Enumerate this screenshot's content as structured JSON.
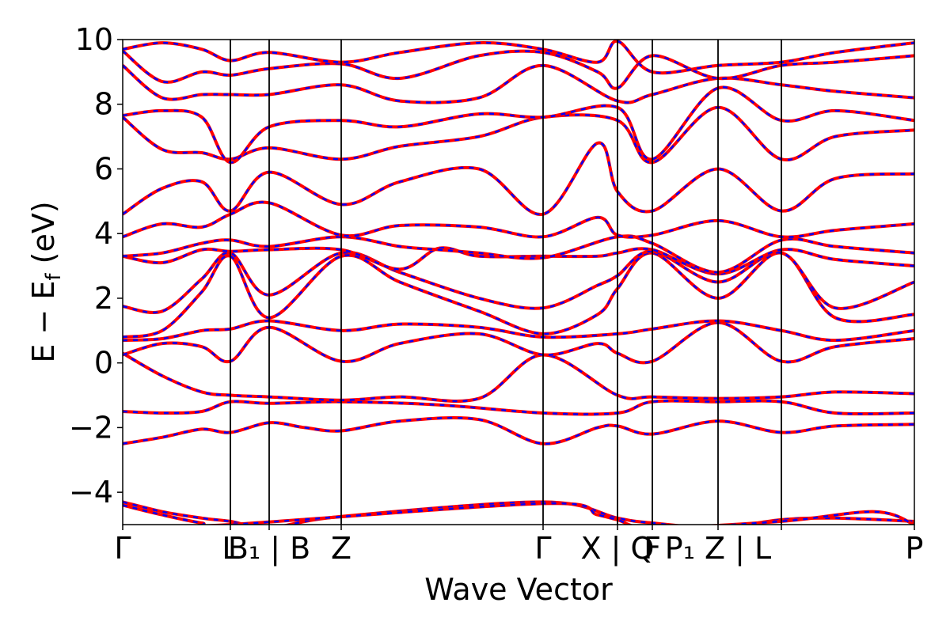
{
  "chart_data": {
    "type": "line",
    "title": "",
    "xlabel": "Wave Vector",
    "ylabel": "E − E_f (eV)",
    "ylabel_main": "E − E",
    "ylabel_sub": "f",
    "ylabel_unit": "(eV)",
    "ylim": [
      -5,
      10
    ],
    "yticks": [
      -4,
      -2,
      0,
      2,
      4,
      6,
      8,
      10
    ],
    "ytick_labels": [
      "−4",
      "−2",
      "0",
      "2",
      "4",
      "6",
      "8",
      "10"
    ],
    "xlim": [
      0,
      1
    ],
    "kpoints": [
      {
        "x": 0.0,
        "label": "Γ"
      },
      {
        "x": 0.136,
        "label": "L"
      },
      {
        "x": 0.185,
        "label": "B₁ | B"
      },
      {
        "x": 0.276,
        "label": "Z"
      },
      {
        "x": 0.531,
        "label": "Γ"
      },
      {
        "x": 0.625,
        "label": "X | Q"
      },
      {
        "x": 0.669,
        "label": "F"
      },
      {
        "x": 0.752,
        "label": "P₁ Z | L"
      },
      {
        "x": 0.832,
        "label": ""
      },
      {
        "x": 1.0,
        "label": "P"
      }
    ],
    "grid": false,
    "legend": "none",
    "series_colors": [
      "#ff0000",
      "#0000ff"
    ],
    "series_styles": [
      "solid",
      "dashed"
    ],
    "bands": [
      [
        [
          0.0,
          -2.5
        ],
        [
          0.05,
          -2.3
        ],
        [
          0.1,
          -2.05
        ],
        [
          0.136,
          -2.15
        ],
        [
          0.185,
          -1.85
        ],
        [
          0.23,
          -2.0
        ],
        [
          0.276,
          -2.1
        ],
        [
          0.35,
          -1.8
        ],
        [
          0.45,
          -1.75
        ],
        [
          0.531,
          -2.5
        ],
        [
          0.6,
          -2.0
        ],
        [
          0.625,
          -1.95
        ],
        [
          0.669,
          -2.2
        ],
        [
          0.752,
          -1.8
        ],
        [
          0.832,
          -2.15
        ],
        [
          0.9,
          -1.95
        ],
        [
          1.0,
          -1.9
        ]
      ],
      [
        [
          0.0,
          -1.5
        ],
        [
          0.05,
          -1.55
        ],
        [
          0.1,
          -1.5
        ],
        [
          0.136,
          -1.2
        ],
        [
          0.185,
          -1.25
        ],
        [
          0.276,
          -1.2
        ],
        [
          0.4,
          -1.3
        ],
        [
          0.531,
          -1.55
        ],
        [
          0.625,
          -1.55
        ],
        [
          0.669,
          -1.2
        ],
        [
          0.752,
          -1.2
        ],
        [
          0.832,
          -1.2
        ],
        [
          0.9,
          -1.55
        ],
        [
          1.0,
          -1.55
        ]
      ],
      [
        [
          0.0,
          0.3
        ],
        [
          0.05,
          -0.4
        ],
        [
          0.1,
          -0.9
        ],
        [
          0.136,
          -1.0
        ],
        [
          0.185,
          -1.05
        ],
        [
          0.276,
          -1.15
        ],
        [
          0.35,
          -1.05
        ],
        [
          0.45,
          -1.1
        ],
        [
          0.531,
          0.25
        ],
        [
          0.625,
          -1.0
        ],
        [
          0.669,
          -1.05
        ],
        [
          0.752,
          -1.1
        ],
        [
          0.832,
          -1.05
        ],
        [
          0.9,
          -0.9
        ],
        [
          1.0,
          -0.95
        ]
      ],
      [
        [
          0.0,
          0.25
        ],
        [
          0.05,
          0.6
        ],
        [
          0.1,
          0.5
        ],
        [
          0.136,
          0.05
        ],
        [
          0.185,
          1.1
        ],
        [
          0.276,
          0.05
        ],
        [
          0.35,
          0.6
        ],
        [
          0.45,
          0.9
        ],
        [
          0.531,
          0.25
        ],
        [
          0.6,
          0.6
        ],
        [
          0.625,
          0.3
        ],
        [
          0.669,
          0.05
        ],
        [
          0.752,
          1.25
        ],
        [
          0.832,
          0.05
        ],
        [
          0.9,
          0.5
        ],
        [
          1.0,
          0.75
        ]
      ],
      [
        [
          0.0,
          0.7
        ],
        [
          0.05,
          0.75
        ],
        [
          0.1,
          1.0
        ],
        [
          0.136,
          1.05
        ],
        [
          0.185,
          1.3
        ],
        [
          0.276,
          1.0
        ],
        [
          0.35,
          1.2
        ],
        [
          0.45,
          1.1
        ],
        [
          0.531,
          0.8
        ],
        [
          0.625,
          0.9
        ],
        [
          0.669,
          1.05
        ],
        [
          0.752,
          1.3
        ],
        [
          0.832,
          1.0
        ],
        [
          0.9,
          0.7
        ],
        [
          1.0,
          1.0
        ]
      ],
      [
        [
          0.0,
          0.8
        ],
        [
          0.05,
          1.0
        ],
        [
          0.1,
          2.2
        ],
        [
          0.136,
          3.3
        ],
        [
          0.185,
          1.4
        ],
        [
          0.276,
          3.3
        ],
        [
          0.35,
          2.5
        ],
        [
          0.45,
          1.6
        ],
        [
          0.531,
          0.9
        ],
        [
          0.6,
          1.5
        ],
        [
          0.625,
          2.3
        ],
        [
          0.669,
          3.4
        ],
        [
          0.752,
          2.0
        ],
        [
          0.832,
          3.4
        ],
        [
          0.9,
          1.4
        ],
        [
          1.0,
          1.5
        ]
      ],
      [
        [
          0.0,
          1.75
        ],
        [
          0.05,
          1.6
        ],
        [
          0.1,
          2.6
        ],
        [
          0.136,
          3.4
        ],
        [
          0.185,
          2.1
        ],
        [
          0.276,
          3.4
        ],
        [
          0.35,
          2.8
        ],
        [
          0.45,
          2.0
        ],
        [
          0.531,
          1.7
        ],
        [
          0.6,
          2.4
        ],
        [
          0.625,
          2.7
        ],
        [
          0.669,
          3.45
        ],
        [
          0.752,
          2.5
        ],
        [
          0.832,
          3.4
        ],
        [
          0.9,
          1.7
        ],
        [
          1.0,
          2.5
        ]
      ],
      [
        [
          0.0,
          3.3
        ],
        [
          0.05,
          3.1
        ],
        [
          0.1,
          3.5
        ],
        [
          0.136,
          3.45
        ],
        [
          0.185,
          3.5
        ],
        [
          0.276,
          3.5
        ],
        [
          0.35,
          2.9
        ],
        [
          0.4,
          3.55
        ],
        [
          0.45,
          3.3
        ],
        [
          0.531,
          3.3
        ],
        [
          0.6,
          3.3
        ],
        [
          0.625,
          3.4
        ],
        [
          0.669,
          3.5
        ],
        [
          0.752,
          2.75
        ],
        [
          0.832,
          3.5
        ],
        [
          0.9,
          3.2
        ],
        [
          1.0,
          3.0
        ]
      ],
      [
        [
          0.0,
          3.3
        ],
        [
          0.05,
          3.4
        ],
        [
          0.1,
          3.7
        ],
        [
          0.136,
          3.8
        ],
        [
          0.185,
          3.6
        ],
        [
          0.276,
          3.9
        ],
        [
          0.35,
          3.6
        ],
        [
          0.4,
          3.5
        ],
        [
          0.45,
          3.4
        ],
        [
          0.531,
          3.25
        ],
        [
          0.625,
          3.9
        ],
        [
          0.669,
          3.7
        ],
        [
          0.752,
          2.8
        ],
        [
          0.832,
          3.8
        ],
        [
          0.9,
          3.6
        ],
        [
          1.0,
          3.4
        ]
      ],
      [
        [
          0.0,
          3.9
        ],
        [
          0.05,
          4.3
        ],
        [
          0.1,
          4.2
        ],
        [
          0.136,
          4.6
        ],
        [
          0.185,
          4.95
        ],
        [
          0.276,
          3.95
        ],
        [
          0.35,
          4.25
        ],
        [
          0.45,
          4.2
        ],
        [
          0.531,
          3.9
        ],
        [
          0.6,
          4.5
        ],
        [
          0.625,
          3.95
        ],
        [
          0.669,
          3.95
        ],
        [
          0.752,
          4.4
        ],
        [
          0.832,
          3.9
        ],
        [
          0.9,
          4.1
        ],
        [
          1.0,
          4.3
        ]
      ],
      [
        [
          0.0,
          4.6
        ],
        [
          0.05,
          5.4
        ],
        [
          0.1,
          5.6
        ],
        [
          0.136,
          4.7
        ],
        [
          0.185,
          5.9
        ],
        [
          0.276,
          4.9
        ],
        [
          0.35,
          5.6
        ],
        [
          0.45,
          6.0
        ],
        [
          0.531,
          4.6
        ],
        [
          0.6,
          6.8
        ],
        [
          0.625,
          5.3
        ],
        [
          0.669,
          4.7
        ],
        [
          0.752,
          6.0
        ],
        [
          0.832,
          4.7
        ],
        [
          0.9,
          5.7
        ],
        [
          1.0,
          5.85
        ]
      ],
      [
        [
          0.0,
          7.6
        ],
        [
          0.05,
          6.6
        ],
        [
          0.1,
          6.5
        ],
        [
          0.136,
          6.3
        ],
        [
          0.185,
          6.65
        ],
        [
          0.276,
          6.3
        ],
        [
          0.35,
          6.7
        ],
        [
          0.45,
          7.0
        ],
        [
          0.531,
          7.6
        ],
        [
          0.625,
          7.5
        ],
        [
          0.669,
          6.2
        ],
        [
          0.752,
          7.9
        ],
        [
          0.832,
          6.3
        ],
        [
          0.9,
          7.0
        ],
        [
          1.0,
          7.2
        ]
      ],
      [
        [
          0.0,
          7.65
        ],
        [
          0.05,
          7.8
        ],
        [
          0.1,
          7.6
        ],
        [
          0.136,
          6.2
        ],
        [
          0.185,
          7.3
        ],
        [
          0.276,
          7.5
        ],
        [
          0.35,
          7.3
        ],
        [
          0.45,
          7.7
        ],
        [
          0.531,
          7.6
        ],
        [
          0.625,
          7.9
        ],
        [
          0.669,
          6.3
        ],
        [
          0.752,
          8.5
        ],
        [
          0.832,
          7.5
        ],
        [
          0.9,
          7.8
        ],
        [
          1.0,
          7.5
        ]
      ],
      [
        [
          0.0,
          9.2
        ],
        [
          0.05,
          8.2
        ],
        [
          0.1,
          8.3
        ],
        [
          0.136,
          8.3
        ],
        [
          0.185,
          8.3
        ],
        [
          0.276,
          8.6
        ],
        [
          0.35,
          8.1
        ],
        [
          0.45,
          8.2
        ],
        [
          0.531,
          9.2
        ],
        [
          0.625,
          8.1
        ],
        [
          0.669,
          8.3
        ],
        [
          0.752,
          8.8
        ],
        [
          0.832,
          8.6
        ],
        [
          0.9,
          8.4
        ],
        [
          1.0,
          8.2
        ]
      ],
      [
        [
          0.0,
          9.65
        ],
        [
          0.05,
          8.7
        ],
        [
          0.1,
          9.0
        ],
        [
          0.136,
          8.9
        ],
        [
          0.185,
          9.1
        ],
        [
          0.276,
          9.25
        ],
        [
          0.35,
          8.8
        ],
        [
          0.45,
          9.5
        ],
        [
          0.531,
          9.6
        ],
        [
          0.6,
          9.0
        ],
        [
          0.625,
          8.5
        ],
        [
          0.669,
          9.5
        ],
        [
          0.752,
          8.8
        ],
        [
          0.832,
          9.2
        ],
        [
          0.9,
          9.3
        ],
        [
          1.0,
          9.5
        ]
      ],
      [
        [
          0.0,
          9.7
        ],
        [
          0.05,
          9.9
        ],
        [
          0.1,
          9.7
        ],
        [
          0.136,
          9.35
        ],
        [
          0.185,
          9.6
        ],
        [
          0.276,
          9.3
        ],
        [
          0.35,
          9.6
        ],
        [
          0.45,
          9.9
        ],
        [
          0.531,
          9.7
        ],
        [
          0.6,
          9.3
        ],
        [
          0.625,
          9.95
        ],
        [
          0.669,
          9.0
        ],
        [
          0.752,
          9.2
        ],
        [
          0.832,
          9.3
        ],
        [
          0.9,
          9.6
        ],
        [
          1.0,
          9.9
        ]
      ],
      [
        [
          0.0,
          -4.3
        ],
        [
          0.05,
          -4.6
        ],
        [
          0.1,
          -4.8
        ],
        [
          0.136,
          -4.9
        ],
        [
          0.185,
          -5.1
        ],
        [
          0.276,
          -4.75
        ],
        [
          0.531,
          -4.3
        ],
        [
          0.625,
          -4.8
        ],
        [
          0.669,
          -4.95
        ],
        [
          0.752,
          -5.1
        ],
        [
          0.832,
          -4.85
        ],
        [
          0.9,
          -4.8
        ],
        [
          1.0,
          -4.9
        ]
      ],
      [
        [
          0.0,
          -4.4
        ],
        [
          0.05,
          -4.7
        ],
        [
          0.1,
          -4.95
        ],
        [
          0.136,
          -5.0
        ],
        [
          0.531,
          -4.35
        ],
        [
          0.6,
          -4.7
        ],
        [
          0.625,
          -4.85
        ],
        [
          0.669,
          -5.1
        ],
        [
          0.832,
          -4.9
        ],
        [
          0.95,
          -4.6
        ],
        [
          1.0,
          -5.0
        ]
      ]
    ]
  }
}
